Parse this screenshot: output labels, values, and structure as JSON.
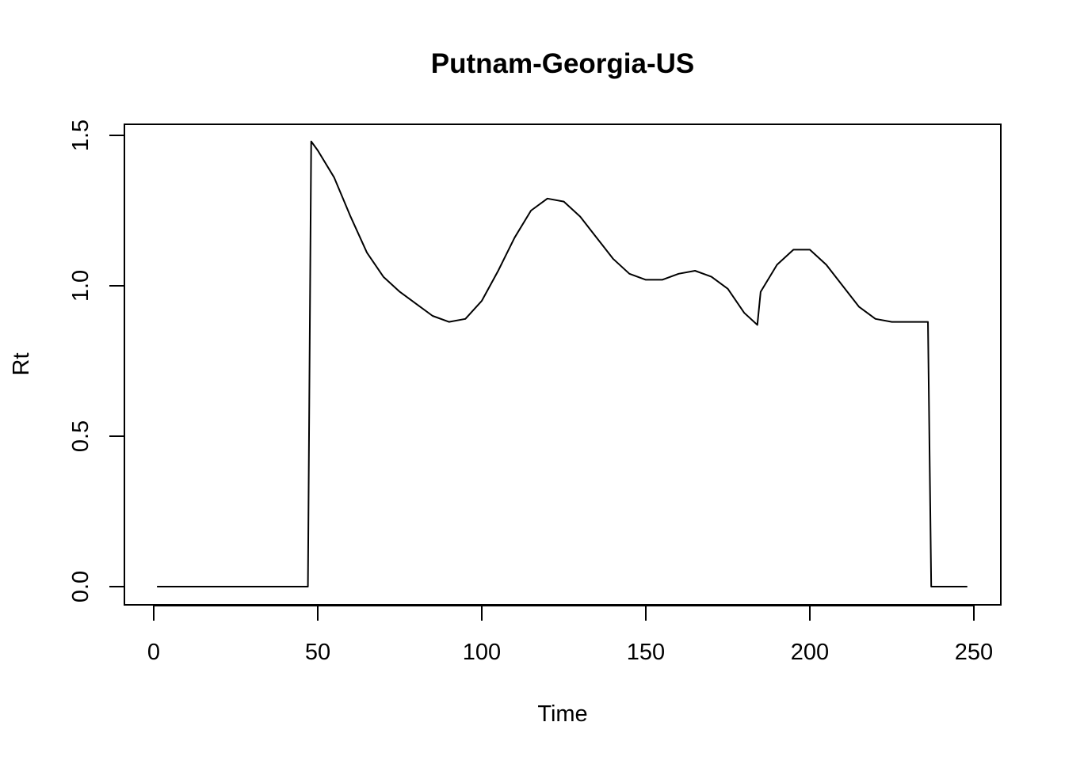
{
  "chart_data": {
    "type": "line",
    "title": "Putnam-Georgia-US",
    "xlabel": "Time",
    "ylabel": "Rt",
    "xlim": [
      0,
      250
    ],
    "ylim": [
      0.0,
      1.5
    ],
    "x_ticks": [
      0,
      50,
      100,
      150,
      200,
      250
    ],
    "y_ticks": [
      0.0,
      0.5,
      1.0,
      1.5
    ],
    "x_tick_labels": [
      "0",
      "50",
      "100",
      "150",
      "200",
      "250"
    ],
    "y_tick_labels": [
      "0.0",
      "0.5",
      "1.0",
      "1.5"
    ],
    "grid": false,
    "legend": "none",
    "line_color": "#000000",
    "series": [
      {
        "x": [
          1,
          47,
          48,
          50,
          55,
          60,
          65,
          70,
          75,
          80,
          85,
          90,
          95,
          100,
          105,
          110,
          115,
          120,
          125,
          130,
          135,
          140,
          145,
          150,
          155,
          160,
          165,
          170,
          175,
          180,
          184,
          185,
          190,
          195,
          200,
          205,
          210,
          215,
          220,
          225,
          230,
          236,
          237,
          248
        ],
        "y": [
          0,
          0,
          1.48,
          1.45,
          1.36,
          1.23,
          1.11,
          1.03,
          0.98,
          0.94,
          0.9,
          0.88,
          0.89,
          0.95,
          1.05,
          1.16,
          1.25,
          1.29,
          1.28,
          1.23,
          1.16,
          1.09,
          1.04,
          1.02,
          1.02,
          1.04,
          1.05,
          1.03,
          0.99,
          0.91,
          0.87,
          0.98,
          1.07,
          1.12,
          1.12,
          1.07,
          1.0,
          0.93,
          0.89,
          0.88,
          0.88,
          0.88,
          0,
          0
        ]
      }
    ]
  }
}
